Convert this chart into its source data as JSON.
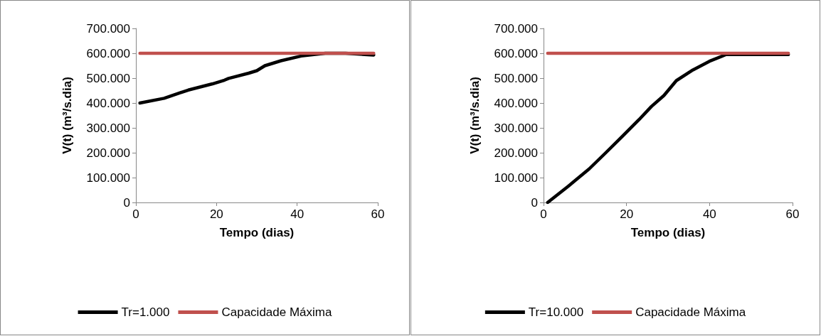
{
  "chart_data": [
    {
      "type": "line",
      "xlabel": "Tempo (dias)",
      "ylabel": "V(t) (m³/s.dia)",
      "xlim": [
        0,
        60
      ],
      "xticks": [
        0,
        20,
        40,
        60
      ],
      "ylim": [
        0,
        700000
      ],
      "yticks": [
        0,
        {
          "value": 100000,
          "label": "100.000"
        },
        {
          "value": 200000,
          "label": "200.000"
        },
        {
          "value": 300000,
          "label": "300.000"
        },
        {
          "value": 400000,
          "label": "400.000"
        },
        {
          "value": 500000,
          "label": "500.000"
        },
        {
          "value": 600000,
          "label": "600.000"
        },
        {
          "value": 700000,
          "label": "700.000"
        }
      ],
      "legend": "bottom",
      "marker": "none",
      "series": [
        {
          "name": "Tr=1.000",
          "color": "#000000",
          "x": [
            1,
            7,
            13,
            19,
            22,
            23,
            28,
            30,
            32,
            36,
            41,
            47,
            52,
            59
          ],
          "values": [
            400000,
            419000,
            452000,
            477000,
            492000,
            499000,
            520000,
            530000,
            550000,
            570000,
            589000,
            600000,
            600000,
            593000
          ]
        },
        {
          "name": "Capacidade Máxima",
          "color": "#c0504d",
          "x": [
            1,
            59
          ],
          "values": [
            600000,
            600000
          ]
        }
      ]
    },
    {
      "type": "line",
      "xlabel": "Tempo (dias)",
      "ylabel": "V(t) (m³/s.dia)",
      "xlim": [
        0,
        60
      ],
      "xticks": [
        0,
        20,
        40,
        60
      ],
      "ylim": [
        0,
        700000
      ],
      "yticks": [
        0,
        {
          "value": 100000,
          "label": "100.000"
        },
        {
          "value": 200000,
          "label": "200.000"
        },
        {
          "value": 300000,
          "label": "300.000"
        },
        {
          "value": 400000,
          "label": "400.000"
        },
        {
          "value": 500000,
          "label": "500.000"
        },
        {
          "value": 600000,
          "label": "600.000"
        },
        {
          "value": 700000,
          "label": "700.000"
        }
      ],
      "legend": "bottom",
      "marker": "none",
      "series": [
        {
          "name": "Tr=10.000",
          "color": "#000000",
          "x": [
            1,
            6,
            11,
            15,
            19,
            23,
            26,
            29,
            32,
            36,
            40,
            44,
            59
          ],
          "values": [
            0,
            66000,
            135000,
            200000,
            266000,
            333000,
            386000,
            430000,
            490000,
            533000,
            568000,
            595000,
            595000
          ]
        },
        {
          "name": "Capacidade Máxima",
          "color": "#c0504d",
          "x": [
            1,
            59
          ],
          "values": [
            600000,
            600000
          ]
        }
      ]
    }
  ]
}
